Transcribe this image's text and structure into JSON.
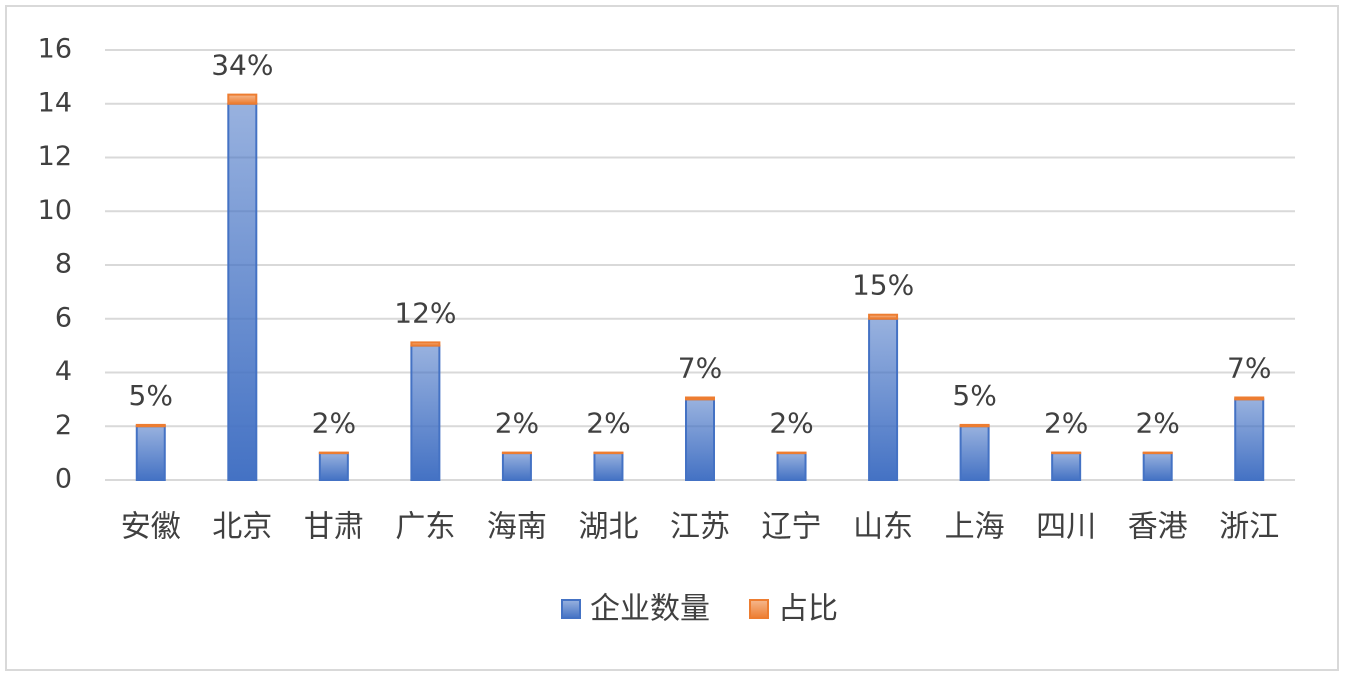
{
  "chart_data": {
    "type": "stacked-bar",
    "categories": [
      "安徽",
      "北京",
      "甘肃",
      "广东",
      "海南",
      "湖北",
      "江苏",
      "辽宁",
      "山东",
      "上海",
      "四川",
      "香港",
      "浙江"
    ],
    "series": [
      {
        "name": "企业数量",
        "color": "#4472c4",
        "values": [
          2,
          14,
          1,
          5,
          1,
          1,
          3,
          1,
          6,
          2,
          1,
          1,
          3
        ]
      },
      {
        "name": "占比",
        "color": "#ed7d31",
        "values": [
          0.05,
          0.34,
          0.02,
          0.12,
          0.02,
          0.02,
          0.07,
          0.02,
          0.15,
          0.05,
          0.02,
          0.02,
          0.07
        ],
        "value_labels": [
          "5%",
          "34%",
          "2%",
          "12%",
          "2%",
          "2%",
          "7%",
          "2%",
          "15%",
          "5%",
          "2%",
          "2%",
          "7%"
        ]
      }
    ],
    "ylim": [
      0,
      16
    ],
    "yticks": [
      0,
      2,
      4,
      6,
      8,
      10,
      12,
      14,
      16
    ],
    "grid": true,
    "legend": "bottom"
  }
}
